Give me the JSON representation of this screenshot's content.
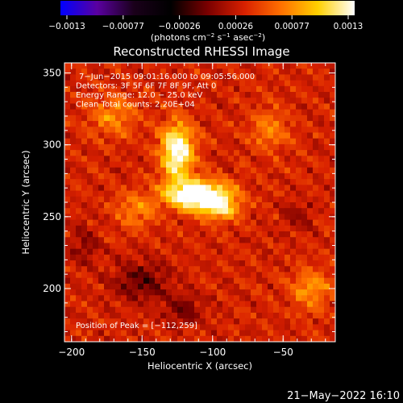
{
  "chart_data": {
    "type": "heatmap",
    "title": "Reconstructed RHESSI Image",
    "xlabel": "Heliocentric X (arcsec)",
    "ylabel": "Heliocentric Y (arcsec)",
    "xlim": [
      -205,
      -13
    ],
    "ylim": [
      163,
      357
    ],
    "xticks": [
      -200,
      -150,
      -100,
      -50
    ],
    "yticks": [
      200,
      250,
      300,
      350
    ],
    "xtick_labels": [
      "−200",
      "−150",
      "−100",
      "−50"
    ],
    "ytick_labels": [
      "200",
      "250",
      "300",
      "350"
    ],
    "colorbar": {
      "range": [
        -0.0013,
        0.0013
      ],
      "tick_labels": [
        "−0.0013",
        "−0.00077",
        "−0.00026",
        "0.00026",
        "0.00077",
        "0.0013"
      ],
      "unit_line": {
        "text": "(photons cm",
        "sup1": "−2",
        "mid": " s",
        "sup2": "−1",
        "mid2": " asec",
        "sup3": "−2",
        "end": ")"
      },
      "colors": [
        "#0000ff",
        "#5a00a0",
        "#1a001a",
        "#000000",
        "#7a0000",
        "#d82000",
        "#ff7000",
        "#ffd000",
        "#ffffff"
      ]
    },
    "annotations": [
      "7−Jun−2015 09:01:16.000 to 09:05:56.000",
      "Detectors: 3F 5F 6F 7F 8F 9F, Att 0",
      "Energy Range: 12.0 − 25.0 keV",
      "Clean     Total counts: 2.20E+04"
    ],
    "peak_label": "Position of Peak = [−112,259]",
    "peak": [
      -112,
      259
    ],
    "sources": [
      {
        "x": -125,
        "y": 295,
        "sx": 8,
        "sy": 14,
        "amp": 0.0011
      },
      {
        "x": -110,
        "y": 265,
        "sx": 16,
        "sy": 7,
        "amp": 0.0013
      },
      {
        "x": -95,
        "y": 255,
        "sx": 10,
        "sy": 6,
        "amp": 0.0006
      },
      {
        "x": -155,
        "y": 255,
        "sx": 9,
        "sy": 9,
        "amp": 0.0004
      },
      {
        "x": -170,
        "y": 320,
        "sx": 12,
        "sy": 10,
        "amp": 0.0004
      },
      {
        "x": -30,
        "y": 200,
        "sx": 10,
        "sy": 10,
        "amp": 0.00045
      },
      {
        "x": -60,
        "y": 310,
        "sx": 10,
        "sy": 10,
        "amp": 0.00035
      },
      {
        "x": -150,
        "y": 205,
        "sx": 14,
        "sy": 10,
        "amp": -0.0004
      },
      {
        "x": -120,
        "y": 185,
        "sx": 10,
        "sy": 8,
        "amp": -0.0003
      },
      {
        "x": -190,
        "y": 230,
        "sx": 8,
        "sy": 10,
        "amp": -0.00025
      },
      {
        "x": -40,
        "y": 250,
        "sx": 8,
        "sy": 8,
        "amp": -0.0002
      }
    ]
  },
  "timestamp": "21−May−2022 16:10"
}
